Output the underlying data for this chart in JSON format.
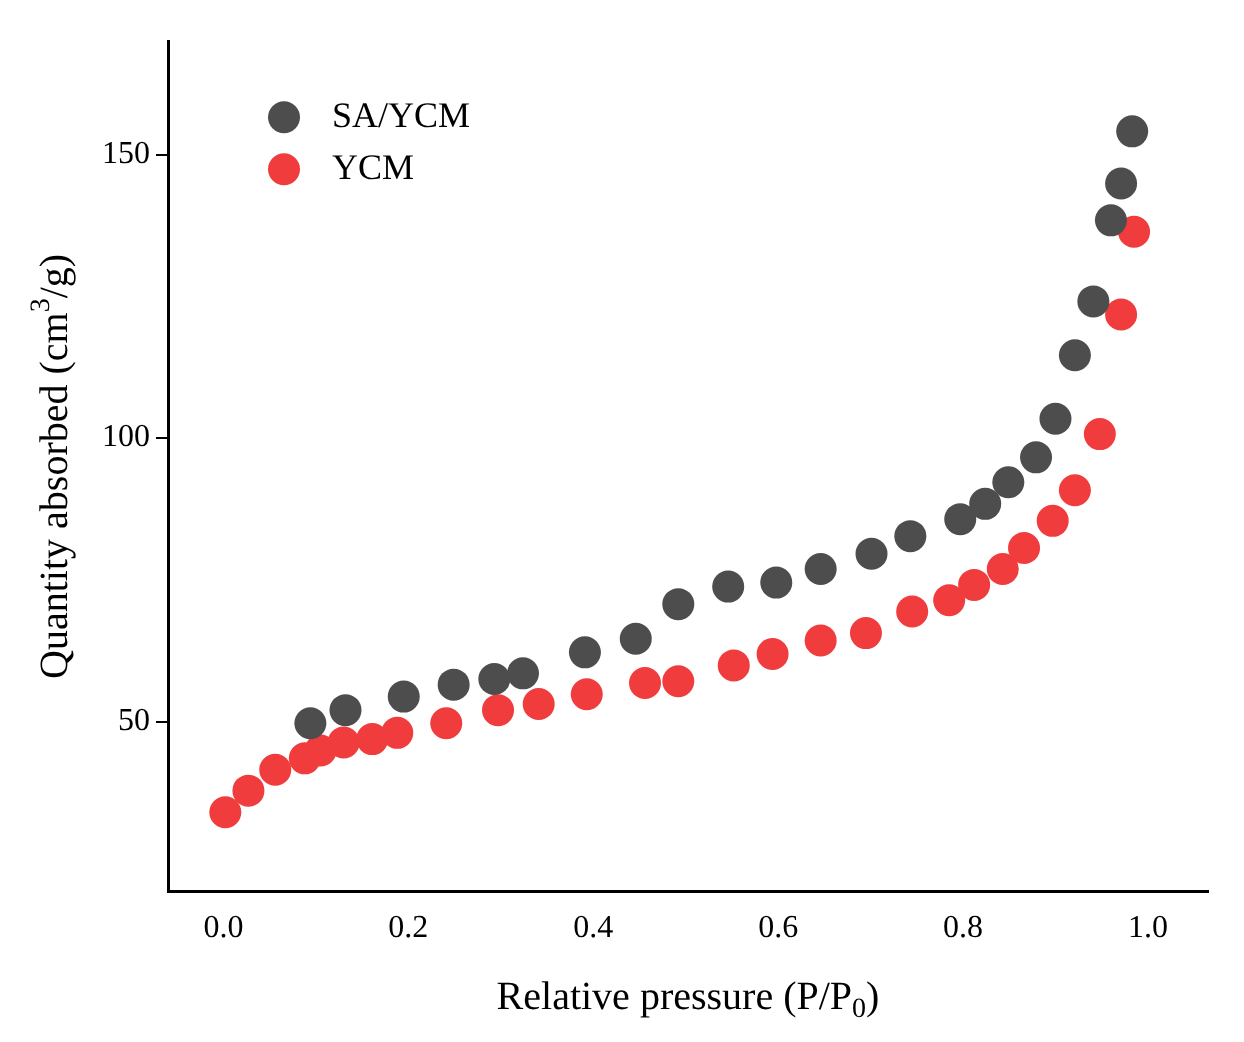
{
  "chart_data": {
    "type": "scatter",
    "xlabel": "Relative pressure (P/P$_{0}$)",
    "ylabel": "Quantity absorbed (cm$^{3}$/g)",
    "xlim": [
      -0.06,
      1.065
    ],
    "ylim": [
      20,
      170
    ],
    "xticks": [
      {
        "value": 0,
        "label": "0.0"
      },
      0.2,
      0.4,
      0.6,
      0.8,
      {
        "value": 1,
        "label": "1.0"
      }
    ],
    "yticks": [
      50,
      100,
      150
    ],
    "grid": false,
    "legend": "top left",
    "marker": "circle",
    "series": [
      {
        "name": "SA/YCM",
        "color": "#4d4d4d",
        "x": [
          0.094,
          0.132,
          0.195,
          0.249,
          0.293,
          0.324,
          0.391,
          0.446,
          0.492,
          0.546,
          0.598,
          0.646,
          0.701,
          0.743,
          0.797,
          0.824,
          0.849,
          0.879,
          0.9,
          0.921,
          0.941,
          0.96,
          0.971,
          0.983
        ],
        "values": [
          49.7,
          52.0,
          54.4,
          56.5,
          57.5,
          58.5,
          62.2,
          64.6,
          70.7,
          73.8,
          74.5,
          76.9,
          79.6,
          82.7,
          85.7,
          88.4,
          92.2,
          96.6,
          103.4,
          114.6,
          124.1,
          138.4,
          144.9,
          154.1
        ]
      },
      {
        "name": "YCM",
        "color": "#f03c3c",
        "x": [
          0.002,
          0.027,
          0.056,
          0.088,
          0.105,
          0.13,
          0.161,
          0.188,
          0.241,
          0.297,
          0.341,
          0.393,
          0.456,
          0.492,
          0.552,
          0.594,
          0.646,
          0.695,
          0.745,
          0.785,
          0.812,
          0.843,
          0.866,
          0.897,
          0.921,
          0.948,
          0.971,
          0.985
        ],
        "values": [
          34.0,
          37.8,
          41.5,
          43.5,
          44.9,
          46.3,
          46.9,
          48.0,
          49.7,
          52.0,
          53.1,
          54.8,
          56.8,
          57.1,
          59.9,
          61.9,
          64.3,
          65.6,
          69.4,
          71.4,
          74.1,
          76.9,
          80.6,
          85.4,
          90.8,
          100.7,
          121.8,
          136.4
        ]
      }
    ]
  }
}
